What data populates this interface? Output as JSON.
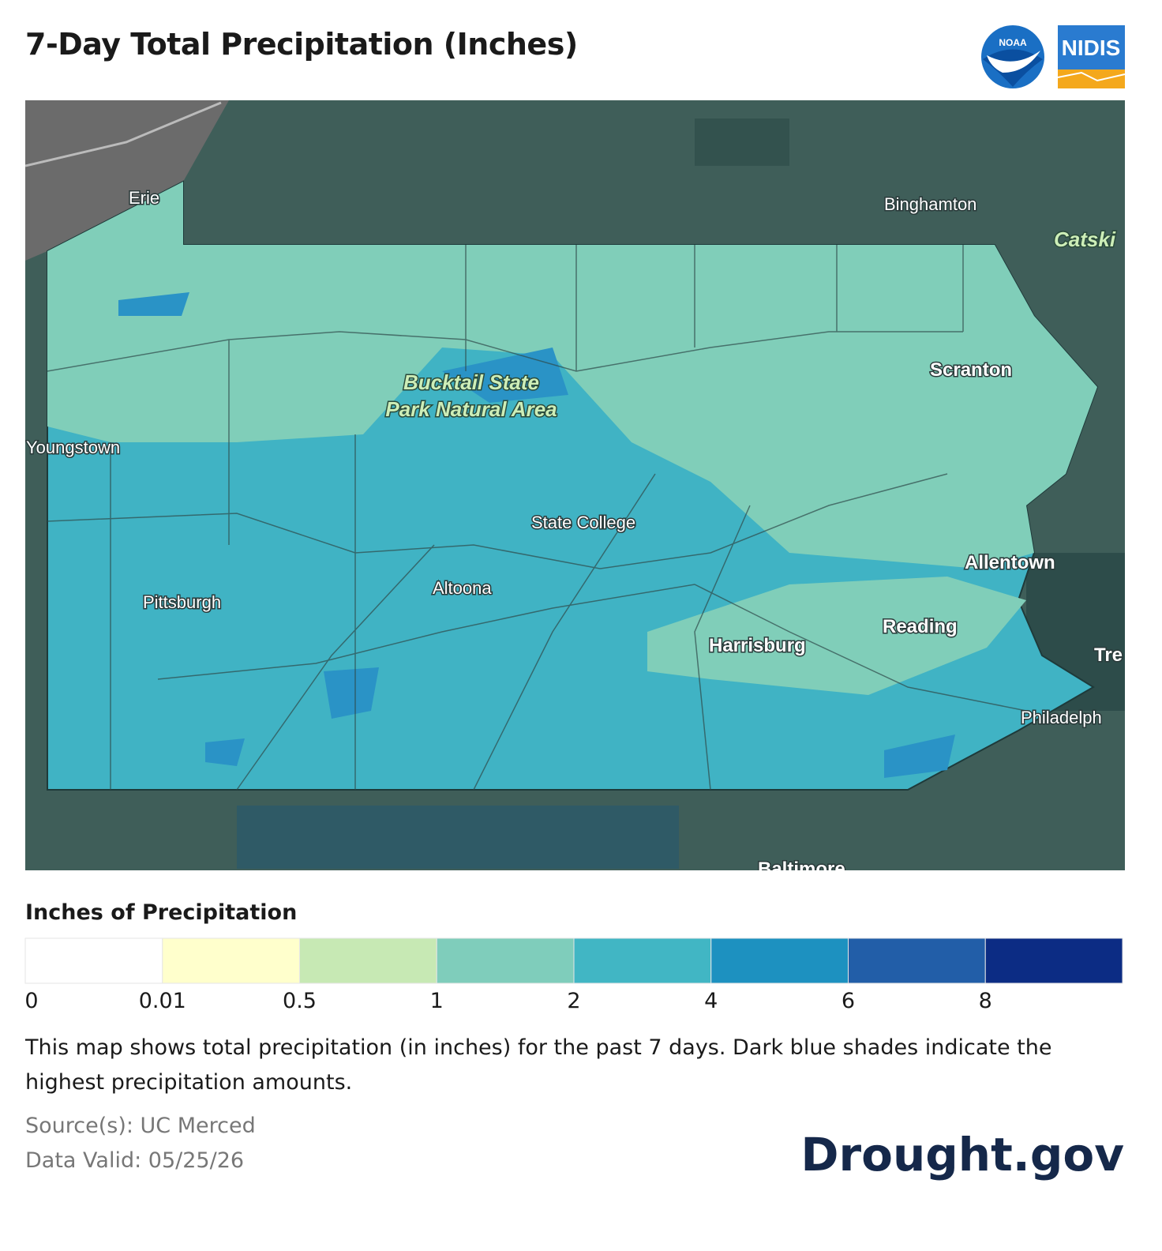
{
  "header": {
    "title": "7-Day Total Precipitation (Inches)",
    "logos": [
      "NOAA",
      "NIDIS"
    ]
  },
  "map": {
    "labels": [
      "Erie",
      "Binghamton",
      "Catski",
      "Youngstown",
      "Bucktail State",
      "Park Natural Area",
      "Scranton",
      "State College",
      "Allentown",
      "Pittsburgh",
      "Altoona",
      "Reading",
      "Harrisburg",
      "Tre",
      "Philadelph",
      "Baltimore"
    ]
  },
  "legend": {
    "title": "Inches of Precipitation",
    "ticks": [
      0,
      0.01,
      0.5,
      1,
      2,
      4,
      6,
      8
    ],
    "colors": [
      "#ffffff",
      "#ffffcc",
      "#c7e9b4",
      "#7fcdbb",
      "#41b6c4",
      "#1d91c0",
      "#225ea8",
      "#0c2c84"
    ]
  },
  "description": "This map shows total precipitation (in inches) for the past 7 days. Dark blue shades indicate the highest precipitation amounts.",
  "source": "Source(s): UC Merced",
  "data_valid": "Data Valid: 05/25/26",
  "brand": "Drought.gov"
}
